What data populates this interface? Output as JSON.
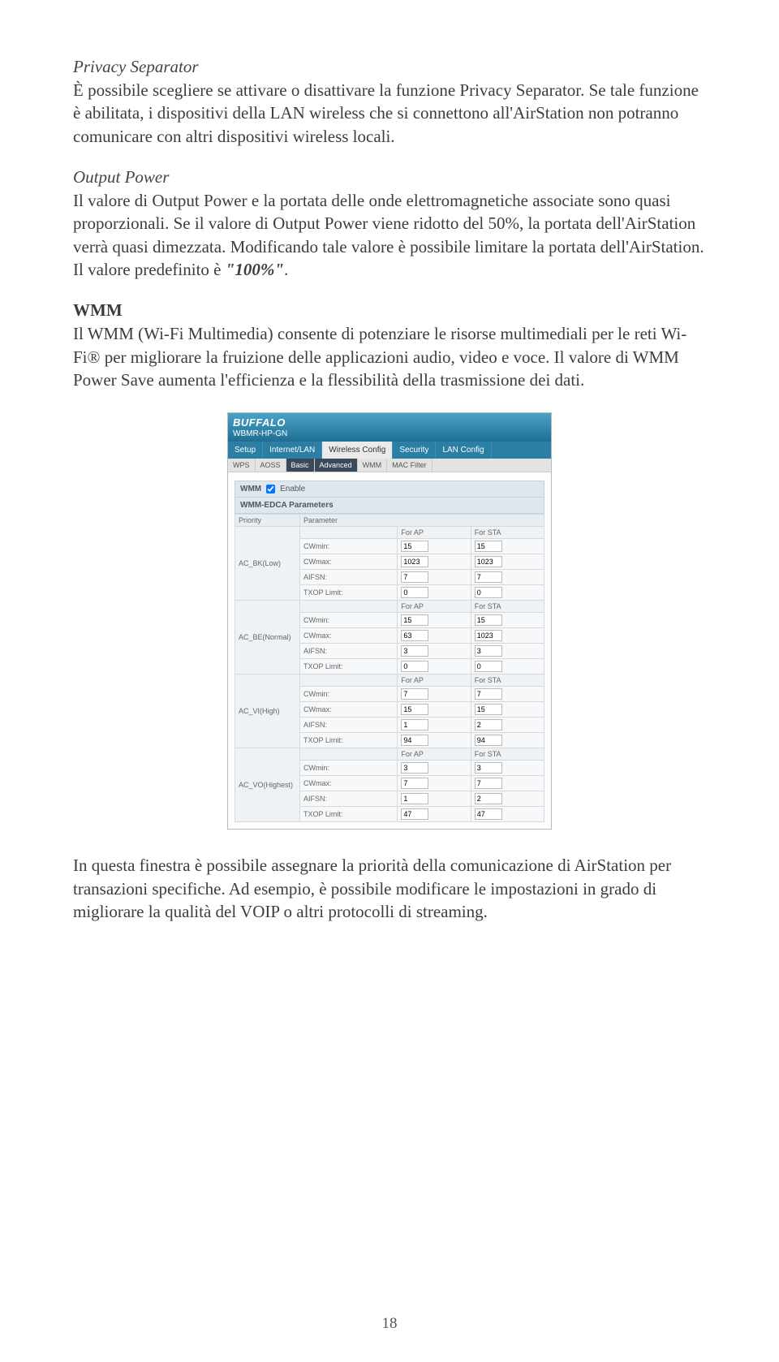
{
  "privacy": {
    "title": "Privacy Separator",
    "body": "È possibile scegliere se attivare o disattivare la funzione Privacy Separator. Se tale funzione è abilitata, i dispositivi della LAN wireless che si connettono all'AirStation non potranno comunicare con altri dispositivi wireless locali."
  },
  "output": {
    "title": "Output Power",
    "body_a": "Il valore di Output Power e la portata delle onde elettromagnetiche associate sono quasi proporzionali. Se il valore di Output Power viene ridotto del 50%, la portata dell'AirStation verrà quasi dimezzata. Modificando tale valore è possibile limitare la portata dell'AirStation. Il valore predefinito è ",
    "body_b": "\"100%\"",
    "body_c": "."
  },
  "wmm": {
    "title": "WMM",
    "body": "Il WMM (Wi-Fi Multimedia) consente di potenziare le risorse multimediali per le reti Wi-Fi® per migliorare la fruizione delle applicazioni audio, video e voce. Il valore di WMM Power Save aumenta l'efficienza e la flessibilità della trasmissione dei dati."
  },
  "router": {
    "brand": "BUFFALO",
    "model": "WBMR-HP-GN",
    "maintabs": [
      "Setup",
      "Internet/LAN",
      "Wireless Config",
      "Security",
      "LAN Config"
    ],
    "maintab_active_index": 2,
    "subtabs": [
      "WPS",
      "AOSS",
      "Basic",
      "Advanced",
      "WMM",
      "MAC Filter"
    ],
    "subtab_dark_indices": [
      2,
      3
    ],
    "enable_label": "WMM",
    "enable_checkbox_label": "Enable",
    "edca_title": "WMM-EDCA Parameters",
    "col_priority": "Priority",
    "col_parameter": "Parameter",
    "col_ap": "For AP",
    "col_sta": "For STA",
    "param_labels": [
      "CWmin:",
      "CWmax:",
      "AIFSN:",
      "TXOP Limit:"
    ],
    "priorities": [
      {
        "name": "AC_BK(Low)",
        "ap": [
          "15",
          "1023",
          "7",
          "0"
        ],
        "sta": [
          "15",
          "1023",
          "7",
          "0"
        ]
      },
      {
        "name": "AC_BE(Normal)",
        "ap": [
          "15",
          "63",
          "3",
          "0"
        ],
        "sta": [
          "15",
          "1023",
          "3",
          "0"
        ]
      },
      {
        "name": "AC_VI(High)",
        "ap": [
          "7",
          "15",
          "1",
          "94"
        ],
        "sta": [
          "7",
          "15",
          "2",
          "94"
        ]
      },
      {
        "name": "AC_VO(Highest)",
        "ap": [
          "3",
          "7",
          "1",
          "47"
        ],
        "sta": [
          "3",
          "7",
          "2",
          "47"
        ]
      }
    ]
  },
  "closing": "In questa finestra è possibile assegnare la priorità della comunicazione di AirStation per transazioni specifiche. Ad esempio, è possibile modificare le impostazioni in grado di migliorare la qualità del VOIP o altri protocolli di streaming.",
  "page_number": "18"
}
